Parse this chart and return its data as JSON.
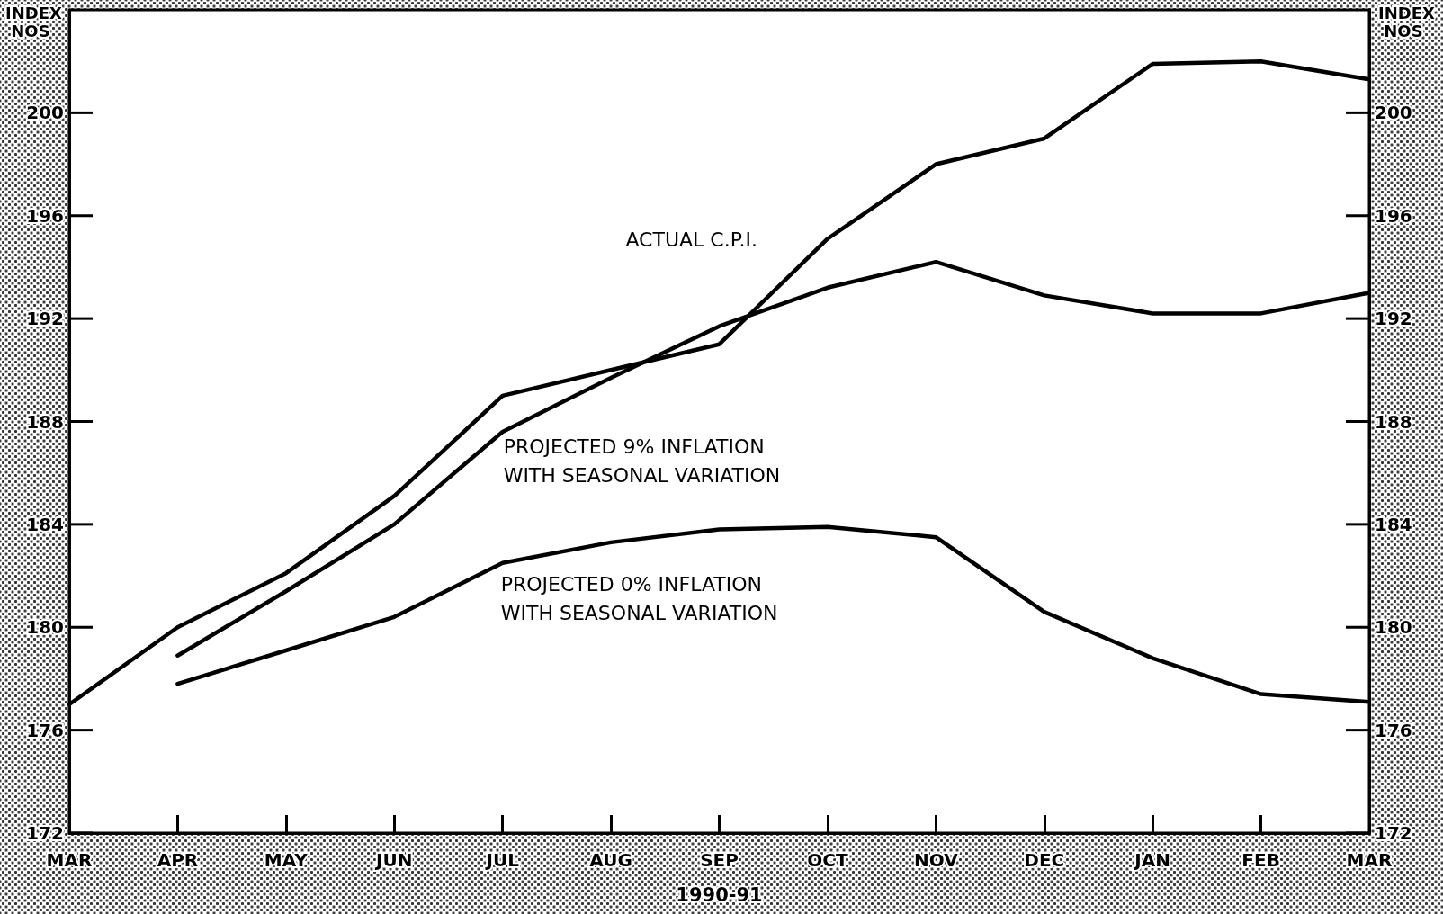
{
  "chart_data": {
    "type": "line",
    "xlabel": "1990-91",
    "ylabel": "INDEX NOS",
    "y2label": "INDEX NOS",
    "categories": [
      "MAR",
      "APR",
      "MAY",
      "JUN",
      "JUL",
      "AUG",
      "SEP",
      "OCT",
      "NOV",
      "DEC",
      "JAN",
      "FEB",
      "MAR"
    ],
    "series": [
      {
        "name": "ACTUAL C.P.I.",
        "color": "#000000",
        "values": [
          177.0,
          180.0,
          182.1,
          185.1,
          189.0,
          190.0,
          191.0,
          195.1,
          198.0,
          199.0,
          201.9,
          202.0,
          201.3
        ]
      },
      {
        "name": "PROJECTED 9% INFLATION WITH SEASONAL VARIATION",
        "color": "#000000",
        "values": [
          null,
          178.9,
          181.4,
          184.0,
          187.6,
          189.7,
          191.7,
          193.2,
          194.2,
          192.9,
          192.2,
          192.2,
          193.0
        ]
      },
      {
        "name": "PROJECTED 0% INFLATION WITH SEASONAL VARIATION",
        "color": "#000000",
        "values": [
          null,
          177.8,
          179.1,
          180.4,
          182.5,
          183.3,
          183.8,
          183.9,
          183.5,
          180.6,
          178.8,
          177.4,
          177.1
        ]
      }
    ],
    "ylim": [
      172,
      204
    ],
    "yticks": [
      172,
      176,
      180,
      184,
      188,
      192,
      196,
      200
    ],
    "y2lim": [
      172,
      204
    ],
    "y2ticks": [
      172,
      176,
      180,
      184,
      188,
      192,
      196,
      200
    ],
    "marker": "none",
    "line_style": "solid"
  }
}
